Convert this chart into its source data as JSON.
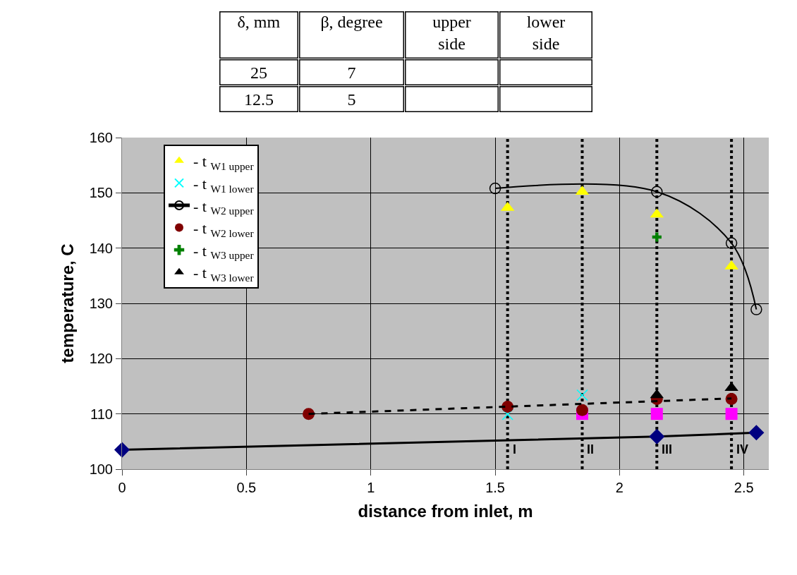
{
  "chart_data": {
    "type": "scatter",
    "xlabel": "distance from inlet, m",
    "ylabel": "temperature, C",
    "xlim": [
      0,
      2.6
    ],
    "xticks": [
      0,
      0.5,
      1,
      1.5,
      2,
      2.5
    ],
    "ylim": [
      100,
      160
    ],
    "yticks": [
      100,
      110,
      120,
      130,
      140,
      150,
      160
    ],
    "grid": true,
    "legend": "top left",
    "series": [
      {
        "type": "line",
        "color": "#000080",
        "marker": "diamond",
        "line_style": "solid",
        "x": [
          0,
          2.15,
          2.55
        ],
        "values": [
          103.5,
          105.9,
          106.6
        ]
      },
      {
        "color": "#ff00ff",
        "marker": "square",
        "x": [
          1.85,
          2.15,
          2.45
        ],
        "values": [
          110,
          110,
          110
        ]
      },
      {
        "name": "- t $_{W1 upper}$",
        "color": "#ffff00",
        "marker": "triangle",
        "x": [
          1.55,
          1.85,
          2.15,
          2.45
        ],
        "values": [
          147.3,
          150.2,
          146.1,
          136.7
        ]
      },
      {
        "name": "- t $_{W1 lower}$",
        "color": "#00ffff",
        "marker": "x",
        "x": [
          1.55,
          1.85
        ],
        "values": [
          109.9,
          113.4
        ]
      },
      {
        "type": "line",
        "name": "- t $_{W2 upper}$",
        "color": "#000000",
        "marker": "circle-open",
        "line_style": "solid",
        "x": [
          1.5,
          2.15,
          2.45,
          2.55
        ],
        "values": [
          150.8,
          150.2,
          140.9,
          128.9
        ]
      },
      {
        "name": "- t $_{W2 lower}$",
        "color": "#800000",
        "marker": "circle",
        "x": [
          0.75,
          1.55,
          1.85,
          2.15,
          2.45
        ],
        "values": [
          110,
          111.3,
          110.7,
          112.7,
          112.7
        ]
      },
      {
        "type": "line",
        "color": "#000000",
        "marker": "none",
        "line_style": "dashed",
        "x": [
          0.75,
          2.45
        ],
        "values": [
          110,
          112.8
        ]
      },
      {
        "name": "- t $_{W3 upper}$",
        "color": "#008000",
        "marker": "cross",
        "x": [
          2.15
        ],
        "values": [
          142.0
        ]
      },
      {
        "name": "- t $_{W3 lower}$",
        "color": "#000000",
        "marker": "triangle",
        "x": [
          2.15,
          2.45
        ],
        "values": [
          113.4,
          114.7
        ]
      }
    ],
    "ref_lines": [
      {
        "axis": "x",
        "value": 1.55,
        "label": "I",
        "line_style": "dotted",
        "color": "#000000"
      },
      {
        "axis": "x",
        "value": 1.85,
        "label": "II",
        "line_style": "dotted",
        "color": "#000000"
      },
      {
        "axis": "x",
        "value": 2.15,
        "label": "III",
        "line_style": "dotted",
        "color": "#000000"
      },
      {
        "axis": "x",
        "value": 2.45,
        "label": "IV",
        "line_style": "dotted",
        "color": "#000000"
      }
    ],
    "annotations": [
      "δ, mm",
      "β, degree",
      "upper side",
      "lower side",
      "25",
      "7",
      "12.5",
      "5"
    ]
  }
}
